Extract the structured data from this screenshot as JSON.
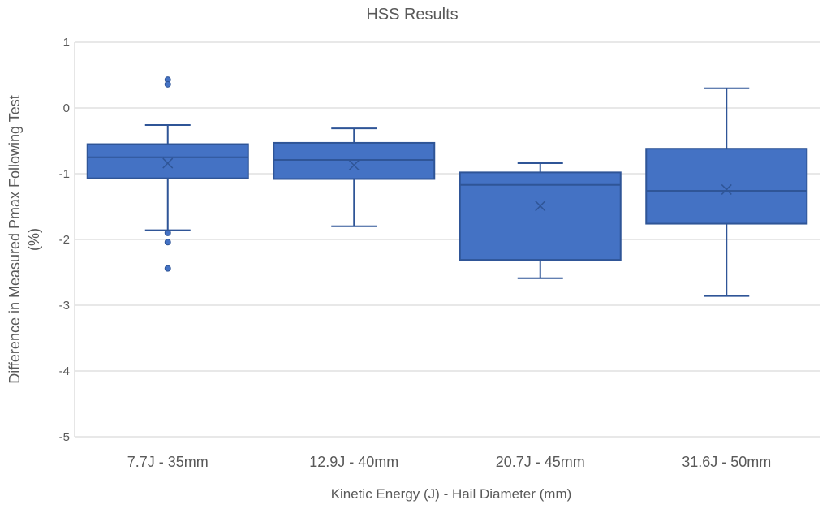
{
  "chart_data": {
    "type": "box",
    "title": "HSS Results",
    "xlabel": "Kinetic Energy (J) - Hail Diameter (mm)",
    "ylabel": "Difference in Measured Pmax Following Test (%)",
    "ylabel_lines": [
      "Difference in Measured Pmax Following Test",
      "(%)"
    ],
    "ylim": [
      -5,
      1
    ],
    "yticks": [
      1,
      0,
      -1,
      -2,
      -3,
      -4,
      -5
    ],
    "grid": true,
    "categories": [
      "7.7J - 35mm",
      "12.9J - 40mm",
      "20.7J - 45mm",
      "31.6J - 50mm"
    ],
    "color": "#4472C4",
    "edge_color": "#2F5597",
    "boxes": [
      {
        "whisker_high": -0.26,
        "q3": -0.55,
        "median": -0.75,
        "mean": -0.84,
        "q1": -1.07,
        "whisker_low": -1.86,
        "outliers": [
          0.43,
          0.36,
          -1.9,
          -2.04,
          -2.44
        ]
      },
      {
        "whisker_high": -0.31,
        "q3": -0.53,
        "median": -0.79,
        "mean": -0.87,
        "q1": -1.08,
        "whisker_low": -1.8,
        "outliers": []
      },
      {
        "whisker_high": -0.84,
        "q3": -0.98,
        "median": -1.17,
        "mean": -1.49,
        "q1": -2.31,
        "whisker_low": -2.59,
        "outliers": []
      },
      {
        "whisker_high": 0.3,
        "q3": -0.62,
        "median": -1.26,
        "mean": -1.24,
        "q1": -1.76,
        "whisker_low": -2.86,
        "outliers": []
      }
    ]
  }
}
